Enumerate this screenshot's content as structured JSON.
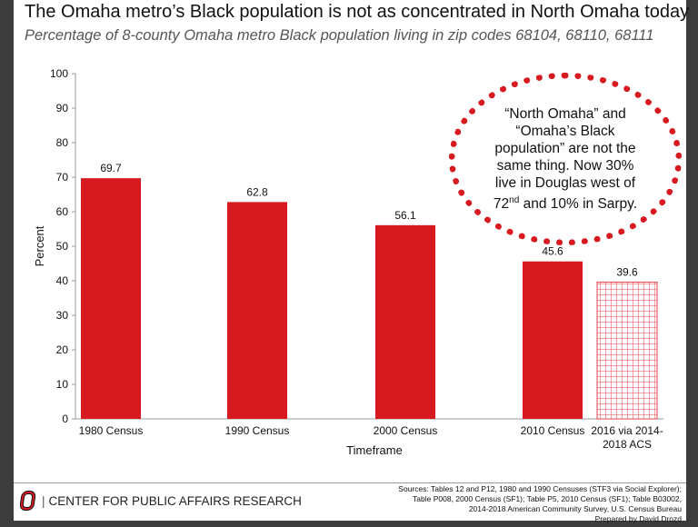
{
  "title": "The Omaha metro’s Black population is not as concentrated in North Omaha today",
  "subtitle": "Percentage of 8-county Omaha metro Black population living in zip codes 68104, 68110, 68111",
  "callout": {
    "line1": "“North Omaha” and",
    "line2": "“Omaha’s Black",
    "line3": "population” are not the",
    "line4": "same thing. Now 30%",
    "line5a": "live in Douglas west of",
    "line6a": "72",
    "line6sup": "nd",
    "line6b": " and 10% in Sarpy."
  },
  "footer": {
    "org": "CENTER FOR PUBLIC AFFAIRS RESEARCH",
    "sources": [
      "Sources: Tables 12 and P12, 1980 and 1990 Censuses (STF3 via Social Explorer);",
      "Table P008, 2000 Census (SF1);  Table P5, 2010 Census (SF1); Table B03002,",
      "2014-2018 American Community Survey, U.S. Census Bureau",
      "Prepared by David Drozd"
    ]
  },
  "colors": {
    "bar": "#d71920",
    "hatched": "#e8424a"
  },
  "chart_data": {
    "type": "bar",
    "categories": [
      [
        "1980 Census"
      ],
      [
        "1990 Census"
      ],
      [
        "2000 Census"
      ],
      [
        "2010 Census"
      ],
      [
        "2016 via 2014-",
        "2018 ACS"
      ]
    ],
    "values": [
      69.7,
      62.8,
      56.1,
      45.6,
      39.6
    ],
    "data_labels": [
      "69.7",
      "62.8",
      "56.1",
      "45.6",
      "39.6"
    ],
    "fill": [
      "solid",
      "solid",
      "solid",
      "solid",
      "grid-hatched"
    ],
    "xlabel": "Timeframe",
    "ylabel": "Percent",
    "ylim": [
      0,
      100
    ],
    "yticks": [
      "0",
      "10",
      "20",
      "30",
      "40",
      "50",
      "60",
      "70",
      "80",
      "90",
      "100"
    ],
    "grid": false
  }
}
